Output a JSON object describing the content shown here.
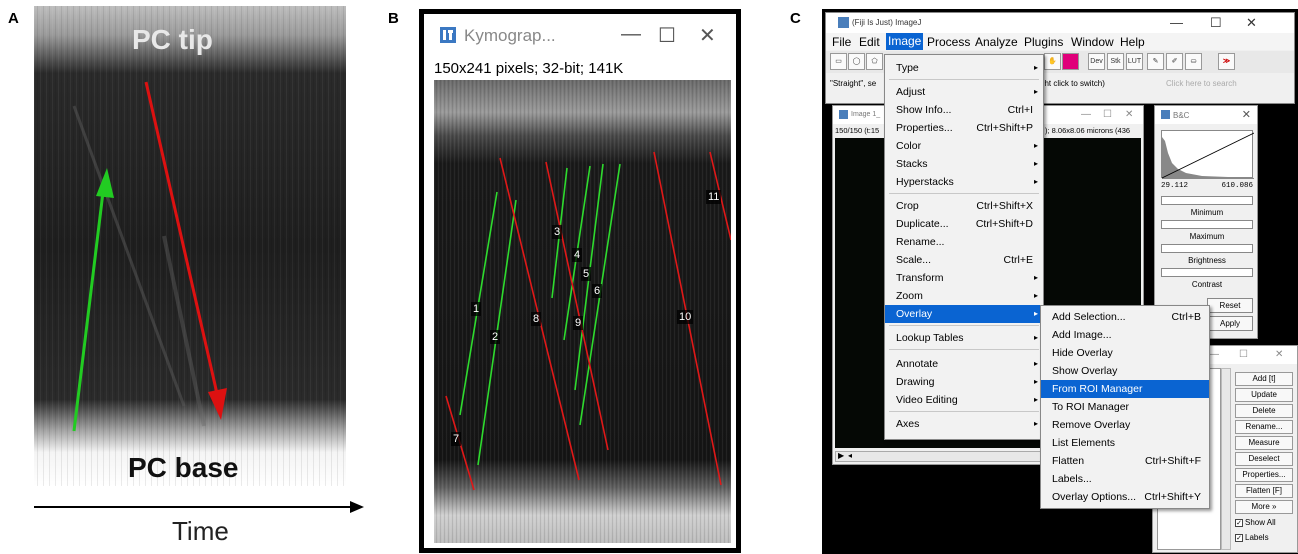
{
  "panel_letters": {
    "a": "A",
    "b": "B",
    "c": "C"
  },
  "panelA": {
    "top_label": "PC tip",
    "bottom_label": "PC base",
    "axis_label": "Time",
    "arrow_colors": {
      "green": "#22cc22",
      "red": "#dd1111"
    }
  },
  "panelB": {
    "window_title": "Kymograp...",
    "info": "150x241 pixels; 32-bit; 141K",
    "controls": {
      "minimize": "—",
      "maximize": "☐",
      "close": "✕"
    },
    "track_labels": [
      "1",
      "2",
      "3",
      "4",
      "5",
      "6",
      "7",
      "8",
      "9",
      "10",
      "11"
    ],
    "colors": {
      "anterograde": "#2edb2e",
      "retrograde": "#e01818"
    }
  },
  "panelC": {
    "main_window": {
      "title": "(Fiji Is Just) ImageJ",
      "controls": {
        "minimize": "—",
        "maximize": "☐",
        "close": "✕"
      },
      "menus": [
        "File",
        "Edit",
        "Image",
        "Process",
        "Analyze",
        "Plugins",
        "Window",
        "Help"
      ],
      "active_menu": "Image",
      "tools": [
        "Dev",
        "Stk",
        "LUT"
      ],
      "status_left": "\"Straight\", se",
      "status_mid": "ght click to switch)",
      "search_placeholder": "Click here to search"
    },
    "image_window": {
      "title": "Image 1_",
      "info_left": "150/150 (t:15",
      "info_right": "); 8.06x8.06 microns (436"
    },
    "bc_window": {
      "title": "B&C",
      "min_value": "29.112",
      "max_value": "610.086",
      "labels": {
        "minimum": "Minimum",
        "maximum": "Maximum",
        "brightness": "Brightness",
        "contrast": "Contrast"
      },
      "buttons": {
        "reset": "Reset",
        "apply": "Apply"
      }
    },
    "image_menu": [
      {
        "label": "Type",
        "shortcut": "",
        "submenu": true
      },
      {
        "label": "Adjust",
        "shortcut": "",
        "submenu": true
      },
      {
        "label": "Show Info...",
        "shortcut": "Ctrl+I",
        "submenu": false
      },
      {
        "label": "Properties...",
        "shortcut": "Ctrl+Shift+P",
        "submenu": false
      },
      {
        "label": "Color",
        "shortcut": "",
        "submenu": true
      },
      {
        "label": "Stacks",
        "shortcut": "",
        "submenu": true
      },
      {
        "label": "Hyperstacks",
        "shortcut": "",
        "submenu": true
      },
      {
        "label": "Crop",
        "shortcut": "Ctrl+Shift+X",
        "submenu": false
      },
      {
        "label": "Duplicate...",
        "shortcut": "Ctrl+Shift+D",
        "submenu": false
      },
      {
        "label": "Rename...",
        "shortcut": "",
        "submenu": false
      },
      {
        "label": "Scale...",
        "shortcut": "Ctrl+E",
        "submenu": false
      },
      {
        "label": "Transform",
        "shortcut": "",
        "submenu": true
      },
      {
        "label": "Zoom",
        "shortcut": "",
        "submenu": true
      },
      {
        "label": "Overlay",
        "shortcut": "",
        "submenu": true
      },
      {
        "label": "Lookup Tables",
        "shortcut": "",
        "submenu": true
      },
      {
        "label": "Annotate",
        "shortcut": "",
        "submenu": true
      },
      {
        "label": "Drawing",
        "shortcut": "",
        "submenu": true
      },
      {
        "label": "Video Editing",
        "shortcut": "",
        "submenu": true
      },
      {
        "label": "Axes",
        "shortcut": "",
        "submenu": true
      }
    ],
    "overlay_menu": [
      {
        "label": "Add Selection...",
        "shortcut": "Ctrl+B"
      },
      {
        "label": "Add Image...",
        "shortcut": ""
      },
      {
        "label": "Hide Overlay",
        "shortcut": ""
      },
      {
        "label": "Show Overlay",
        "shortcut": ""
      },
      {
        "label": "From ROI Manager",
        "shortcut": ""
      },
      {
        "label": "To ROI Manager",
        "shortcut": ""
      },
      {
        "label": "Remove Overlay",
        "shortcut": ""
      },
      {
        "label": "List Elements",
        "shortcut": ""
      },
      {
        "label": "Flatten",
        "shortcut": "Ctrl+Shift+F"
      },
      {
        "label": "Labels...",
        "shortcut": ""
      },
      {
        "label": "Overlay Options...",
        "shortcut": "Ctrl+Shift+Y"
      }
    ],
    "roi_manager": {
      "controls": {
        "minimize": "—",
        "maximize": "☐",
        "close": "✕"
      },
      "buttons": [
        "Add [t]",
        "Update",
        "Delete",
        "Rename...",
        "Measure",
        "Deselect",
        "Properties...",
        "Flatten [F]",
        "More »"
      ],
      "show_all": "Show All",
      "labels": "Labels"
    },
    "selection_color": "#0a64d2"
  }
}
